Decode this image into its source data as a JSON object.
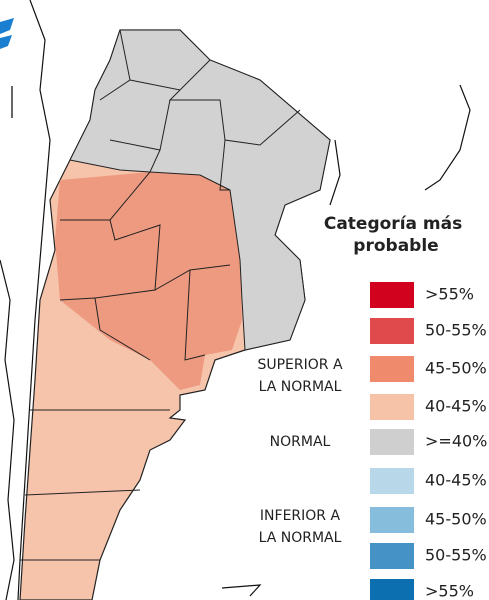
{
  "legend": {
    "title": "Categoría más probable",
    "groups": [
      {
        "label": [
          "SUPERIOR A",
          "LA NORMAL"
        ],
        "items": [
          {
            "label": ">55%",
            "color": "#d0021e"
          },
          {
            "label": "50-55%",
            "color": "#e04a4d"
          },
          {
            "label": "45-50%",
            "color": "#ef8a6c"
          },
          {
            "label": "40-45%",
            "color": "#f6c3a9"
          }
        ]
      },
      {
        "label": [
          "NORMAL"
        ],
        "items": [
          {
            "label": ">=40%",
            "color": "#cfcfcf"
          }
        ]
      },
      {
        "label": [
          "INFERIOR A",
          "LA NORMAL"
        ],
        "items": [
          {
            "label": "40-45%",
            "color": "#b8d8ea"
          },
          {
            "label": "45-50%",
            "color": "#86bcdc"
          },
          {
            "label": "50-55%",
            "color": "#4592c7"
          },
          {
            "label": ">55%",
            "color": "#0c6fb0"
          }
        ]
      }
    ]
  }
}
